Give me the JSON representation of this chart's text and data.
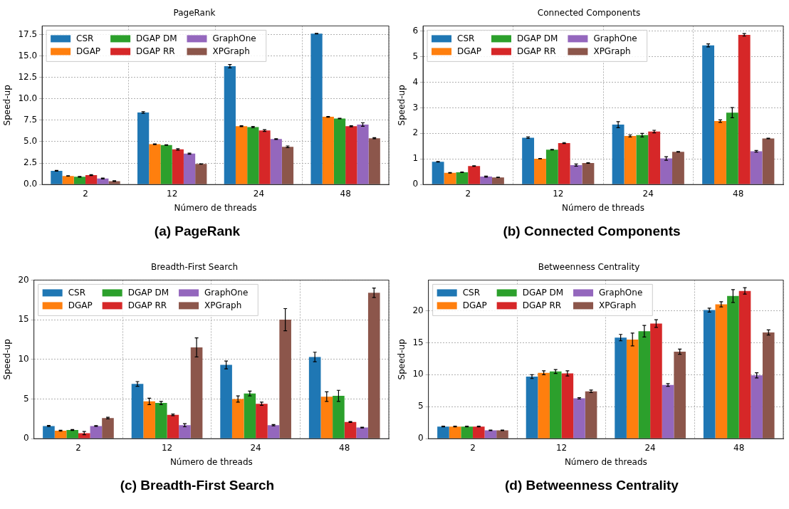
{
  "chart_data": [
    {
      "type": "bar",
      "title": "PageRank",
      "xlabel": "Número de threads",
      "ylabel": "Speed-up",
      "categories": [
        "2",
        "12",
        "24",
        "48"
      ],
      "ylim": [
        0,
        18.5
      ],
      "yticks": [
        {
          "value": 0,
          "label": "0.0"
        },
        {
          "value": 2.5,
          "label": "2.5"
        },
        {
          "value": 5,
          "label": "5.0"
        },
        {
          "value": 7.5,
          "label": "7.5"
        },
        {
          "value": 10,
          "label": "10.0"
        },
        {
          "value": 12.5,
          "label": "12.5"
        },
        {
          "value": 15,
          "label": "15.0"
        },
        {
          "value": 17.5,
          "label": "17.5"
        }
      ],
      "grid": true,
      "legend": "top left",
      "annotations": [
        "(a) PageRank"
      ],
      "series": [
        {
          "name": "CSR",
          "color": "#1f77b4",
          "values": [
            1.6,
            8.4,
            13.8,
            17.6
          ],
          "errors": [
            0.04,
            0.1,
            0.2,
            0.03
          ]
        },
        {
          "name": "DGAP",
          "color": "#ff7f0e",
          "values": [
            1.0,
            4.7,
            6.8,
            7.9
          ],
          "errors": [
            0.03,
            0.04,
            0.05,
            0.04
          ]
        },
        {
          "name": "DGAP DM",
          "color": "#2ca02c",
          "values": [
            0.9,
            4.6,
            6.7,
            7.7
          ],
          "errors": [
            0.04,
            0.03,
            0.08,
            0.04
          ]
        },
        {
          "name": "DGAP RR",
          "color": "#d62728",
          "values": [
            1.1,
            4.1,
            6.3,
            6.8
          ],
          "errors": [
            0.05,
            0.08,
            0.1,
            0.06
          ]
        },
        {
          "name": "GraphOne",
          "color": "#9467bd",
          "values": [
            0.7,
            3.6,
            5.3,
            7.0
          ],
          "errors": [
            0.05,
            0.06,
            0.05,
            0.2
          ]
        },
        {
          "name": "XPGraph",
          "color": "#8c564b",
          "values": [
            0.4,
            2.4,
            4.4,
            5.4
          ],
          "errors": [
            0.04,
            0.02,
            0.1,
            0.06
          ]
        }
      ]
    },
    {
      "type": "bar",
      "title": "Connected Components",
      "xlabel": "Número de threads",
      "ylabel": "Speed-up",
      "categories": [
        "2",
        "12",
        "24",
        "48"
      ],
      "ylim": [
        0,
        6.2
      ],
      "yticks": [
        0,
        1,
        2,
        3,
        4,
        5,
        6
      ],
      "grid": true,
      "legend": "top left",
      "annotations": [
        "(b) Connected Components"
      ],
      "series": [
        {
          "name": "CSR",
          "color": "#1f77b4",
          "values": [
            0.89,
            1.83,
            2.34,
            5.44
          ],
          "errors": [
            0.01,
            0.03,
            0.12,
            0.06
          ]
        },
        {
          "name": "DGAP",
          "color": "#ff7f0e",
          "values": [
            0.46,
            1.01,
            1.9,
            2.48
          ],
          "errors": [
            0.01,
            0.01,
            0.04,
            0.05
          ]
        },
        {
          "name": "DGAP DM",
          "color": "#2ca02c",
          "values": [
            0.48,
            1.36,
            1.93,
            2.81
          ],
          "errors": [
            0.01,
            0.01,
            0.07,
            0.2
          ]
        },
        {
          "name": "DGAP RR",
          "color": "#d62728",
          "values": [
            0.72,
            1.62,
            2.07,
            5.85
          ],
          "errors": [
            0.01,
            0.02,
            0.05,
            0.05
          ]
        },
        {
          "name": "GraphOne",
          "color": "#9467bd",
          "values": [
            0.31,
            0.76,
            1.02,
            1.3
          ],
          "errors": [
            0.02,
            0.04,
            0.07,
            0.03
          ]
        },
        {
          "name": "XPGraph",
          "color": "#8c564b",
          "values": [
            0.28,
            0.84,
            1.28,
            1.8
          ],
          "errors": [
            0.01,
            0.01,
            0.01,
            0.01
          ]
        }
      ]
    },
    {
      "type": "bar",
      "title": "Breadth-First Search",
      "xlabel": "Número de threads",
      "ylabel": "Speed-up",
      "categories": [
        "2",
        "12",
        "24",
        "48"
      ],
      "ylim": [
        0,
        20
      ],
      "yticks": [
        0,
        5,
        10,
        15,
        20
      ],
      "grid": true,
      "legend": "top left",
      "annotations": [
        "(c) Breadth-First Search"
      ],
      "series": [
        {
          "name": "CSR",
          "color": "#1f77b4",
          "values": [
            1.6,
            6.9,
            9.3,
            10.3
          ],
          "errors": [
            0.06,
            0.3,
            0.5,
            0.6
          ]
        },
        {
          "name": "DGAP",
          "color": "#ff7f0e",
          "values": [
            1.0,
            4.7,
            5.0,
            5.3
          ],
          "errors": [
            0.06,
            0.4,
            0.4,
            0.6
          ]
        },
        {
          "name": "DGAP DM",
          "color": "#2ca02c",
          "values": [
            1.1,
            4.5,
            5.7,
            5.4
          ],
          "errors": [
            0.06,
            0.2,
            0.3,
            0.7
          ]
        },
        {
          "name": "DGAP RR",
          "color": "#d62728",
          "values": [
            0.7,
            3.0,
            4.4,
            2.1
          ],
          "errors": [
            0.2,
            0.1,
            0.2,
            0.06
          ]
        },
        {
          "name": "GraphOne",
          "color": "#9467bd",
          "values": [
            1.6,
            1.7,
            1.7,
            1.4
          ],
          "errors": [
            0.05,
            0.2,
            0.08,
            0.05
          ]
        },
        {
          "name": "XPGraph",
          "color": "#8c564b",
          "values": [
            2.6,
            11.5,
            15.0,
            18.4
          ],
          "errors": [
            0.1,
            1.2,
            1.4,
            0.6
          ]
        }
      ]
    },
    {
      "type": "bar",
      "title": "Betweenness Centrality",
      "xlabel": "Número de threads",
      "ylabel": "Speed-up",
      "categories": [
        "2",
        "12",
        "24",
        "48"
      ],
      "ylim": [
        0,
        24.8
      ],
      "yticks": [
        0,
        5,
        10,
        15,
        20
      ],
      "grid": true,
      "legend": "top left",
      "annotations": [
        "(d) Betweenness Centrality"
      ],
      "series": [
        {
          "name": "CSR",
          "color": "#1f77b4",
          "values": [
            1.9,
            9.7,
            15.8,
            20.1
          ],
          "errors": [
            0.05,
            0.3,
            0.5,
            0.3
          ]
        },
        {
          "name": "DGAP",
          "color": "#ff7f0e",
          "values": [
            1.9,
            10.3,
            15.5,
            21.0
          ],
          "errors": [
            0.05,
            0.3,
            1.0,
            0.4
          ]
        },
        {
          "name": "DGAP DM",
          "color": "#2ca02c",
          "values": [
            1.9,
            10.5,
            16.8,
            22.3
          ],
          "errors": [
            0.05,
            0.3,
            0.9,
            1.0
          ]
        },
        {
          "name": "DGAP RR",
          "color": "#d62728",
          "values": [
            1.9,
            10.2,
            18.0,
            23.1
          ],
          "errors": [
            0.05,
            0.4,
            0.6,
            0.5
          ]
        },
        {
          "name": "GraphOne",
          "color": "#9467bd",
          "values": [
            1.3,
            6.3,
            8.4,
            9.9
          ],
          "errors": [
            0.04,
            0.1,
            0.2,
            0.4
          ]
        },
        {
          "name": "XPGraph",
          "color": "#8c564b",
          "values": [
            1.3,
            7.4,
            13.6,
            16.6
          ],
          "errors": [
            0.04,
            0.2,
            0.4,
            0.4
          ]
        }
      ]
    }
  ]
}
